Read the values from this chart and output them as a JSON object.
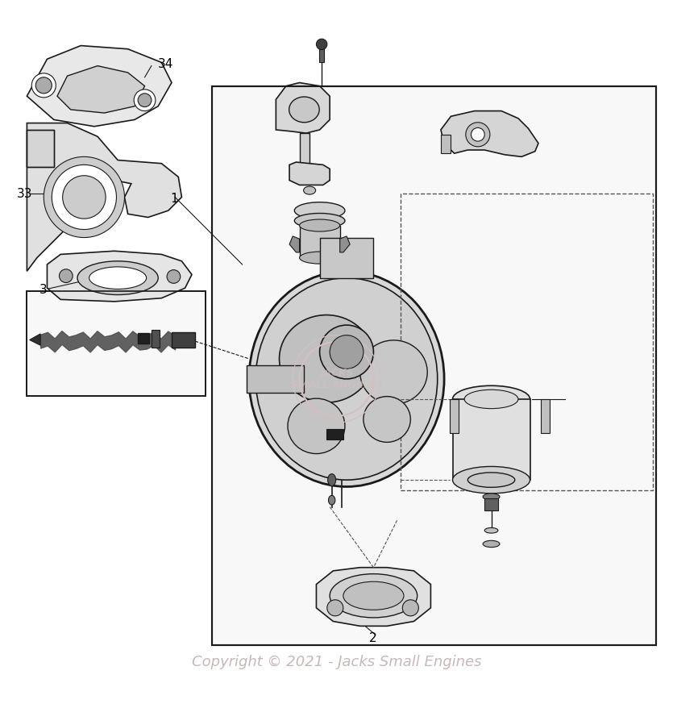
{
  "background_color": "#ffffff",
  "border_color": "#000000",
  "line_color": "#1a1a1a",
  "label_color": "#000000",
  "watermark_color": "#c8b8b8",
  "copyright_text": "Copyright © 2021 - Jacks Small Engines",
  "copyright_fontsize": 13,
  "watermark_logo_color": "#d4c0c0",
  "figsize": [
    8.35,
    8.73
  ],
  "dpi": 100
}
